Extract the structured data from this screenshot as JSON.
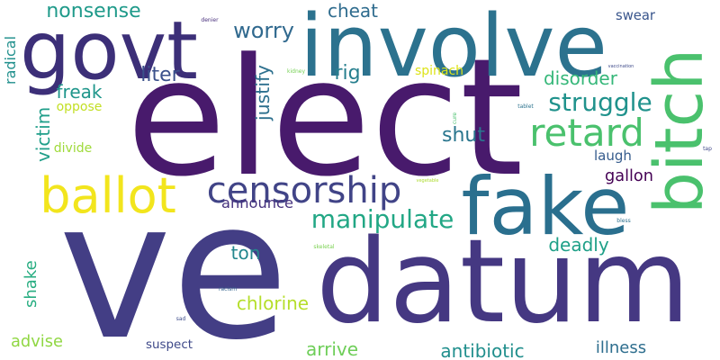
{
  "words": [
    {
      "text": "ve",
      "color": "#433e85",
      "vertical": false
    },
    {
      "text": "elect",
      "color": "#481a6c",
      "vertical": false
    },
    {
      "text": "datum",
      "color": "#453882",
      "vertical": false
    },
    {
      "text": "involve",
      "color": "#2c728e",
      "vertical": false
    },
    {
      "text": "govt",
      "color": "#3c2f78",
      "vertical": false
    },
    {
      "text": "fake",
      "color": "#2a6f8e",
      "vertical": false
    },
    {
      "text": "bitch",
      "color": "#4ac16d",
      "vertical": true
    },
    {
      "text": "ballot",
      "color": "#f2e51d",
      "vertical": false
    },
    {
      "text": "censorship",
      "color": "#414487",
      "vertical": false
    },
    {
      "text": "retard",
      "color": "#4ac16d",
      "vertical": false
    },
    {
      "text": "manipulate",
      "color": "#22a785",
      "vertical": false
    },
    {
      "text": "struggle",
      "color": "#20928c",
      "vertical": false
    },
    {
      "text": "nonsense",
      "color": "#1f9a8a",
      "vertical": false
    },
    {
      "text": "worry",
      "color": "#30698e",
      "vertical": false
    },
    {
      "text": "cheat",
      "color": "#2f6c8e",
      "vertical": false
    },
    {
      "text": "liter",
      "color": "#3b518b",
      "vertical": false
    },
    {
      "text": "rig",
      "color": "#277f8e",
      "vertical": false
    },
    {
      "text": "justify",
      "color": "#2d708e",
      "vertical": true
    },
    {
      "text": "freak",
      "color": "#1f968b",
      "vertical": false
    },
    {
      "text": "disorder",
      "color": "#35b779",
      "vertical": false
    },
    {
      "text": "victim",
      "color": "#1f9e89",
      "vertical": true
    },
    {
      "text": "shut",
      "color": "#2a768e",
      "vertical": false
    },
    {
      "text": "laugh",
      "color": "#365c8d",
      "vertical": false
    },
    {
      "text": "gallon",
      "color": "#440154",
      "vertical": false
    },
    {
      "text": "announce",
      "color": "#46327e",
      "vertical": false
    },
    {
      "text": "deadly",
      "color": "#1fa088",
      "vertical": false
    },
    {
      "text": "ton",
      "color": "#24878e",
      "vertical": false
    },
    {
      "text": "shake",
      "color": "#27ad81",
      "vertical": true
    },
    {
      "text": "chlorine",
      "color": "#b5de2b",
      "vertical": false
    },
    {
      "text": "advise",
      "color": "#90d743",
      "vertical": false
    },
    {
      "text": "arrive",
      "color": "#6ece58",
      "vertical": false
    },
    {
      "text": "antibiotic",
      "color": "#218f8d",
      "vertical": false
    },
    {
      "text": "illness",
      "color": "#2e6e8e",
      "vertical": false
    },
    {
      "text": "radical",
      "color": "#21908d",
      "vertical": true
    },
    {
      "text": "swear",
      "color": "#39558c",
      "vertical": false
    },
    {
      "text": "spinach",
      "color": "#dde318",
      "vertical": false
    },
    {
      "text": "oppose",
      "color": "#c2df23",
      "vertical": false
    },
    {
      "text": "divide",
      "color": "#9fda3a",
      "vertical": false
    },
    {
      "text": "suspect",
      "color": "#3e4989",
      "vertical": false
    },
    {
      "text": "denier",
      "color": "#472d7b",
      "vertical": false
    },
    {
      "text": "kidney",
      "color": "#75d054",
      "vertical": false
    },
    {
      "text": "vaccination",
      "color": "#3e4a89",
      "vertical": false
    },
    {
      "text": "tablet",
      "color": "#2c738e",
      "vertical": false
    },
    {
      "text": "cure",
      "color": "#4ac16d",
      "vertical": true
    },
    {
      "text": "tap",
      "color": "#3f4788",
      "vertical": false
    },
    {
      "text": "vegetable",
      "color": "#addc30",
      "vertical": false
    },
    {
      "text": "bless",
      "color": "#2d708e",
      "vertical": false
    },
    {
      "text": "skeletal",
      "color": "#7ad151",
      "vertical": false
    },
    {
      "text": "racism",
      "color": "#33638d",
      "vertical": false
    },
    {
      "text": "sad",
      "color": "#3e4c8a",
      "vertical": false
    }
  ]
}
